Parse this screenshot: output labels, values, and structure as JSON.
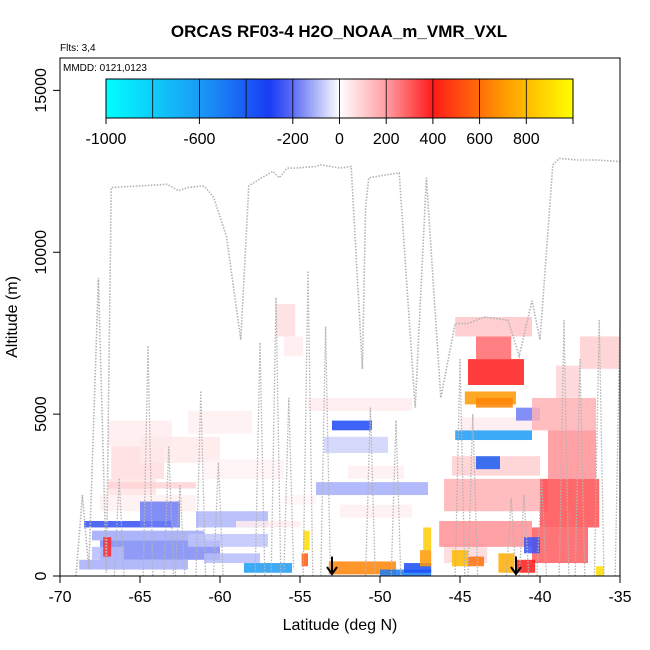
{
  "chart_data": {
    "type": "heatmap",
    "title": "ORCAS RF03-4 H2O_NOAA_m_VMR_VXL",
    "flights_label": "Flts: 3,4",
    "date_label": "MMDD: 0121,0123",
    "xlabel": "Latitude (deg N)",
    "ylabel": "Altitude (m)",
    "xlim": [
      -70,
      -35
    ],
    "ylim": [
      0,
      16000
    ],
    "x_ticks": [
      -70,
      -65,
      -60,
      -55,
      -50,
      -45,
      -40,
      -35
    ],
    "y_ticks": [
      0,
      5000,
      10000,
      15000
    ],
    "colorbar": {
      "range": [
        -1000,
        1000
      ],
      "ticks": [
        -1000,
        -600,
        -200,
        0,
        200,
        400,
        600,
        800
      ],
      "stops": [
        {
          "v": -1000,
          "c": "#00ffff"
        },
        {
          "v": -600,
          "c": "#1a9bf5"
        },
        {
          "v": -300,
          "c": "#1a3cf5"
        },
        {
          "v": -200,
          "c": "#5c6cf5"
        },
        {
          "v": 0,
          "c": "#ffffff"
        },
        {
          "v": 200,
          "c": "#ff9ea3"
        },
        {
          "v": 400,
          "c": "#ff1a1a"
        },
        {
          "v": 700,
          "c": "#ff9900"
        },
        {
          "v": 1000,
          "c": "#ffff00"
        }
      ]
    },
    "flight_track": [
      [
        -69.0,
        0
      ],
      [
        -68.6,
        2500
      ],
      [
        -68.2,
        200
      ],
      [
        -67.6,
        9200
      ],
      [
        -67.1,
        100
      ],
      [
        -66.8,
        12000
      ],
      [
        -65.0,
        12050
      ],
      [
        -63.3,
        12100
      ],
      [
        -62.6,
        11900
      ],
      [
        -62.0,
        12000
      ],
      [
        -61.0,
        12050
      ],
      [
        -60.4,
        11700
      ],
      [
        -59.6,
        10500
      ],
      [
        -58.7,
        7300
      ],
      [
        -58.2,
        12050
      ],
      [
        -57.4,
        12300
      ],
      [
        -56.7,
        12500
      ],
      [
        -56.3,
        12300
      ],
      [
        -55.8,
        12600
      ],
      [
        -55.3,
        12600
      ],
      [
        -54.0,
        12650
      ],
      [
        -53.7,
        12700
      ],
      [
        -52.5,
        12600
      ],
      [
        -51.8,
        12650
      ],
      [
        -51.1,
        6400
      ],
      [
        -50.9,
        11400
      ],
      [
        -50.7,
        12300
      ],
      [
        -49.5,
        12400
      ],
      [
        -48.8,
        12450
      ],
      [
        -47.8,
        5200
      ],
      [
        -47.1,
        12300
      ],
      [
        -46.2,
        5500
      ],
      [
        -45.3,
        7800
      ],
      [
        -44.5,
        7800
      ],
      [
        -43.5,
        8000
      ],
      [
        -42.0,
        7900
      ],
      [
        -41.3,
        6800
      ],
      [
        -40.5,
        8500
      ],
      [
        -40.0,
        7300
      ],
      [
        -39.2,
        12700
      ],
      [
        -38.8,
        12900
      ],
      [
        -37.7,
        12850
      ],
      [
        -36.5,
        12850
      ],
      [
        -35.0,
        12800
      ]
    ],
    "track_dips": [
      [
        -66.3,
        0,
        3000
      ],
      [
        -64.5,
        0,
        7100
      ],
      [
        -63.2,
        0,
        4000
      ],
      [
        -62.5,
        0,
        2800
      ],
      [
        -61.2,
        0,
        5700
      ],
      [
        -60.1,
        0,
        3500
      ],
      [
        -57.5,
        0,
        7200
      ],
      [
        -56.5,
        0,
        8600
      ],
      [
        -55.7,
        200,
        5500
      ],
      [
        -54.5,
        0,
        9400
      ],
      [
        -53.4,
        0,
        7700
      ],
      [
        -50.6,
        0,
        5200
      ],
      [
        -49.0,
        0,
        4800
      ],
      [
        -45.0,
        0,
        6700
      ],
      [
        -44.2,
        0,
        5000
      ],
      [
        -41.8,
        0,
        2400
      ],
      [
        -41.0,
        0,
        2500
      ],
      [
        -39.9,
        0,
        3000
      ],
      [
        -38.5,
        0,
        7900
      ],
      [
        -37.5,
        0,
        6700
      ],
      [
        -36.3,
        0,
        7900
      ],
      [
        -35.0,
        0,
        7900
      ]
    ],
    "cells": [
      [
        -67.0,
        -63.0,
        4000,
        4800,
        40
      ],
      [
        -66.8,
        -63.5,
        3000,
        4000,
        70
      ],
      [
        -67.0,
        -64.0,
        2500,
        3000,
        60
      ],
      [
        -67.5,
        -61.5,
        2000,
        2500,
        30
      ],
      [
        -65.0,
        -60.0,
        3500,
        4300,
        45
      ],
      [
        -62.0,
        -58.0,
        4400,
        5100,
        30
      ],
      [
        -61.0,
        -56.0,
        3000,
        3600,
        25
      ],
      [
        -67.0,
        -61.5,
        2700,
        2900,
        90
      ],
      [
        -68.5,
        -63.0,
        1500,
        1700,
        -260
      ],
      [
        -65.0,
        -62.5,
        1500,
        2300,
        -180
      ],
      [
        -68.0,
        -61.0,
        1100,
        1400,
        -120
      ],
      [
        -67.5,
        -60.0,
        500,
        1100,
        -160
      ],
      [
        -68.8,
        -62.0,
        200,
        500,
        -110
      ],
      [
        -68.0,
        -66.0,
        500,
        900,
        -90
      ],
      [
        -67.3,
        -66.8,
        600,
        1200,
        380
      ],
      [
        -61.5,
        -57.0,
        1500,
        2000,
        -100
      ],
      [
        -62.0,
        -57.0,
        900,
        1300,
        -80
      ],
      [
        -61.0,
        -57.5,
        400,
        700,
        -90
      ],
      [
        -58.5,
        -55.5,
        100,
        400,
        -600
      ],
      [
        -59.0,
        -55.0,
        1500,
        1700,
        40
      ],
      [
        -56.0,
        -54.0,
        2200,
        2500,
        20
      ],
      [
        -56.5,
        -55.3,
        7400,
        8400,
        70
      ],
      [
        -56.0,
        -54.8,
        6800,
        7400,
        40
      ],
      [
        -53.0,
        -50.5,
        4500,
        4800,
        -330
      ],
      [
        -53.5,
        -49.5,
        3800,
        4300,
        -60
      ],
      [
        -54.0,
        -47.0,
        2500,
        2900,
        -110
      ],
      [
        -52.0,
        -48.5,
        3000,
        3400,
        30
      ],
      [
        -54.5,
        -48.0,
        5100,
        5500,
        40
      ],
      [
        -52.5,
        -48.0,
        1800,
        2200,
        30
      ],
      [
        -54.8,
        -54.4,
        800,
        1400,
        900
      ],
      [
        -54.9,
        -54.5,
        300,
        700,
        550
      ],
      [
        -53.2,
        -49.0,
        50,
        450,
        650
      ],
      [
        -50.0,
        -46.8,
        0,
        200,
        -500
      ],
      [
        -48.5,
        -46.8,
        100,
        400,
        -350
      ],
      [
        -47.3,
        -46.8,
        800,
        1500,
        850
      ],
      [
        -47.5,
        -46.8,
        300,
        800,
        700
      ],
      [
        -46.0,
        -43.3,
        400,
        1000,
        80
      ],
      [
        -46.3,
        -40.5,
        900,
        1700,
        220
      ],
      [
        -46.0,
        -39.5,
        2000,
        3000,
        160
      ],
      [
        -45.5,
        -40.0,
        3100,
        3700,
        100
      ],
      [
        -45.3,
        -40.5,
        4200,
        4500,
        -600
      ],
      [
        -45.0,
        -40.5,
        4500,
        4900,
        40
      ],
      [
        -44.0,
        -42.5,
        3300,
        3700,
        -400
      ],
      [
        -44.7,
        -41.5,
        5300,
        5700,
        700
      ],
      [
        -44.0,
        -41.7,
        5200,
        5500,
        650
      ],
      [
        -44.5,
        -41.0,
        5900,
        6700,
        400
      ],
      [
        -44.0,
        -41.8,
        6700,
        7400,
        280
      ],
      [
        -45.3,
        -40.5,
        7400,
        8000,
        120
      ],
      [
        -41.5,
        -40.0,
        4800,
        5200,
        -180
      ],
      [
        -40.5,
        -36.5,
        4500,
        5500,
        160
      ],
      [
        -39.5,
        -36.5,
        3000,
        4500,
        220
      ],
      [
        -40.0,
        -36.3,
        1500,
        3000,
        320
      ],
      [
        -40.5,
        -37.0,
        400,
        1500,
        300
      ],
      [
        -39.0,
        -37.5,
        5500,
        6500,
        90
      ],
      [
        -37.5,
        -35.0,
        6400,
        7400,
        100
      ],
      [
        -45.5,
        -44.5,
        300,
        800,
        800
      ],
      [
        -44.5,
        -43.5,
        300,
        600,
        600
      ],
      [
        -42.6,
        -41.6,
        100,
        700,
        760
      ],
      [
        -41.5,
        -40.3,
        100,
        500,
        400
      ],
      [
        -41.0,
        -40.0,
        700,
        1200,
        -250
      ],
      [
        -36.5,
        -36.0,
        0,
        300,
        900
      ]
    ],
    "arrows": [
      -53.0,
      -41.5
    ],
    "arrow_top": 600
  }
}
